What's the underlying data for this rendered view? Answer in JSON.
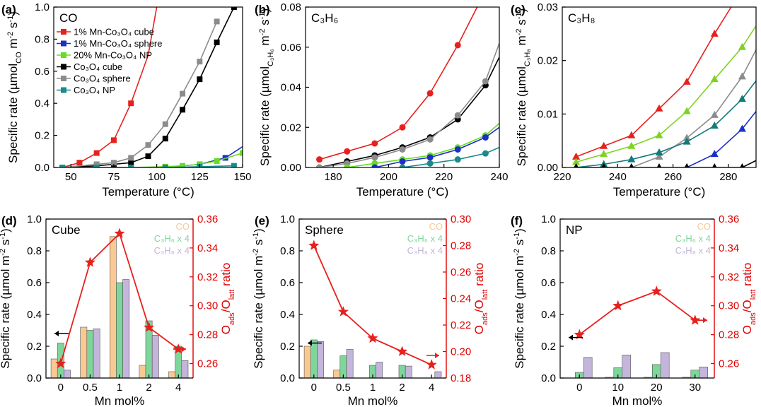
{
  "colors": {
    "red": "#e8201c",
    "blue": "#1c2fc8",
    "lightgreen": "#66dd22",
    "black": "#000000",
    "gray": "#8c8c8c",
    "teal": "#1a8a8a",
    "lime": "#7ed321",
    "darkteal": "#127a7a",
    "bar_co": "#f9c994",
    "bar_c3h6": "#7fd69b",
    "bar_c3h8": "#c4b5dd",
    "axis_red": "#e00000"
  },
  "chart_data": [
    {
      "panel": "(a)",
      "type": "line",
      "title": "CO",
      "xlabel": "Temperature (°C)",
      "ylabel": "Specific rate (µmol_CO m^-2 s^-1)",
      "ylabel_pre": "Specific rate (µmol",
      "ylabel_sub": "CO",
      "ylabel_post": " m",
      "ylabel_sup1": "-2",
      "ylabel_mid": " s",
      "ylabel_sup2": "-1",
      "ylabel_end": ")",
      "xlim": [
        40,
        150
      ],
      "ylim": [
        0,
        1.0
      ],
      "xticks": [
        50,
        75,
        100,
        125,
        150
      ],
      "yticks": [
        0.0,
        0.2,
        0.4,
        0.6,
        0.8,
        1.0
      ],
      "ytick_labels": [
        "0.0",
        "0.2",
        "0.4",
        "0.6",
        "0.8",
        "1.0"
      ],
      "series": [
        {
          "name": "1% Mn-Co₃O₄ cube",
          "color": "red",
          "marker": "square",
          "x": [
            45,
            55,
            65,
            75,
            85,
            95,
            100
          ],
          "y": [
            0.0,
            0.03,
            0.09,
            0.17,
            0.4,
            0.7,
            1.0
          ],
          "points": 5
        },
        {
          "name": "1% Mn-Co₃O₄ sphere",
          "color": "blue",
          "marker": "square",
          "x": [
            45,
            65,
            85,
            105,
            125,
            140,
            150
          ],
          "y": [
            0.0,
            0.0,
            0.0,
            0.0,
            0.02,
            0.06,
            0.13
          ],
          "points": 6
        },
        {
          "name": "20% Mn-Co₃O₄ NP",
          "color": "lightgreen",
          "marker": "square",
          "x": [
            45,
            65,
            85,
            105,
            115,
            125,
            135,
            150
          ],
          "y": [
            0.0,
            0.0,
            0.0,
            0.005,
            0.01,
            0.02,
            0.04,
            0.09
          ],
          "points": 8
        },
        {
          "name": "Co₃O₄ cube",
          "color": "black",
          "marker": "square",
          "x": [
            45,
            65,
            75,
            85,
            95,
            105,
            115,
            125,
            135,
            145
          ],
          "y": [
            0.0,
            0.01,
            0.02,
            0.03,
            0.07,
            0.18,
            0.36,
            0.55,
            0.78,
            1.0
          ],
          "points": 10
        },
        {
          "name": "Co₃O₄ sphere",
          "color": "gray",
          "marker": "square",
          "x": [
            45,
            65,
            75,
            85,
            95,
            105,
            115,
            125,
            135
          ],
          "y": [
            0.0,
            0.02,
            0.03,
            0.06,
            0.14,
            0.27,
            0.46,
            0.66,
            0.91
          ],
          "points": 9
        },
        {
          "name": "Co₃O₄ NP",
          "color": "teal",
          "marker": "square",
          "x": [
            45,
            65,
            85,
            105,
            125,
            145
          ],
          "y": [
            0.0,
            0.0,
            0.0,
            0.0,
            0.005,
            0.01
          ],
          "points": 6
        }
      ]
    },
    {
      "panel": "(b)",
      "type": "line",
      "title": "C₃H₆",
      "xlabel": "Temperature (°C)",
      "ylabel": "Specific rate (µmol_C3H6 m^-2 s^-1)",
      "ylabel_pre": "Specific rate (µmol",
      "ylabel_sub": "C₃H₆",
      "ylabel_post": " m",
      "ylabel_sup1": "-2",
      "ylabel_mid": " s",
      "ylabel_sup2": "-1",
      "ylabel_end": ")",
      "xlim": [
        170,
        240
      ],
      "ylim": [
        0,
        0.08
      ],
      "xticks": [
        180,
        200,
        220,
        240
      ],
      "yticks": [
        0.0,
        0.02,
        0.04,
        0.06,
        0.08
      ],
      "ytick_labels": [
        "0.00",
        "0.02",
        "0.04",
        "0.06",
        "0.08"
      ],
      "series": [
        {
          "name": "1% Mn-Co₃O₄ cube",
          "color": "red",
          "marker": "circle",
          "x": [
            175,
            185,
            195,
            205,
            215,
            225,
            232
          ],
          "y": [
            0.004,
            0.008,
            0.012,
            0.02,
            0.037,
            0.061,
            0.08
          ],
          "points": 6
        },
        {
          "name": "Co₃O₄ cube",
          "color": "black",
          "marker": "circle",
          "x": [
            175,
            185,
            195,
            205,
            215,
            225,
            235,
            240
          ],
          "y": [
            0.0,
            0.003,
            0.006,
            0.01,
            0.015,
            0.024,
            0.041,
            0.055
          ],
          "points": 7
        },
        {
          "name": "Co₃O₄ sphere",
          "color": "gray",
          "marker": "circle",
          "x": [
            175,
            185,
            195,
            205,
            215,
            225,
            235,
            240
          ],
          "y": [
            0.0,
            0.002,
            0.005,
            0.009,
            0.014,
            0.026,
            0.043,
            0.062
          ],
          "points": 7
        },
        {
          "name": "20% Mn-Co₃O₄ NP",
          "color": "lightgreen",
          "marker": "circle",
          "x": [
            185,
            195,
            205,
            215,
            225,
            235,
            240
          ],
          "y": [
            0.0,
            0.002,
            0.004,
            0.006,
            0.01,
            0.016,
            0.022
          ],
          "points": 6
        },
        {
          "name": "1% Mn-Co₃O₄ sphere",
          "color": "blue",
          "marker": "circle",
          "x": [
            195,
            205,
            215,
            225,
            235,
            240
          ],
          "y": [
            0.0,
            0.003,
            0.005,
            0.009,
            0.015,
            0.02
          ],
          "points": 5
        },
        {
          "name": "Co₃O₄ NP",
          "color": "teal",
          "marker": "circle",
          "x": [
            205,
            215,
            225,
            235,
            240
          ],
          "y": [
            0.0,
            0.002,
            0.004,
            0.007,
            0.01
          ],
          "points": 4
        }
      ]
    },
    {
      "panel": "(c)",
      "type": "line",
      "title": "C₃H₈",
      "xlabel": "Temperature (°C)",
      "ylabel": "Specific rate (µmol_C3H8 m^-2 s^-1)",
      "ylabel_pre": "Specific rate (µmol",
      "ylabel_sub": "C₃H₈",
      "ylabel_post": " m",
      "ylabel_sup1": "-2",
      "ylabel_mid": " s",
      "ylabel_sup2": "-1",
      "ylabel_end": ")",
      "xlim": [
        220,
        290
      ],
      "ylim": [
        0,
        0.03
      ],
      "xticks": [
        220,
        240,
        260,
        280
      ],
      "yticks": [
        0.0,
        0.01,
        0.02,
        0.03
      ],
      "ytick_labels": [
        "0.00",
        "0.01",
        "0.02",
        "0.03"
      ],
      "series": [
        {
          "name": "1% Mn-Co₃O₄ cube",
          "color": "red",
          "marker": "triangle",
          "x": [
            225,
            235,
            245,
            255,
            265,
            275,
            281
          ],
          "y": [
            0.002,
            0.004,
            0.006,
            0.011,
            0.016,
            0.025,
            0.03
          ],
          "points": 6
        },
        {
          "name": "20% Mn-Co₃O₄ NP",
          "color": "lime",
          "marker": "triangle",
          "x": [
            225,
            235,
            245,
            255,
            265,
            275,
            285,
            290
          ],
          "y": [
            0.001,
            0.0025,
            0.004,
            0.006,
            0.0105,
            0.0165,
            0.0225,
            0.0265
          ],
          "points": 7
        },
        {
          "name": "Co₃O₄ sphere",
          "color": "gray",
          "marker": "triangle",
          "x": [
            245,
            255,
            265,
            275,
            285,
            290
          ],
          "y": [
            0.0,
            0.002,
            0.0055,
            0.0098,
            0.017,
            0.022
          ],
          "points": 5
        },
        {
          "name": "Co₃O₄ NP",
          "color": "darkteal",
          "marker": "triangle",
          "x": [
            225,
            235,
            245,
            255,
            265,
            275,
            285,
            290
          ],
          "y": [
            0.0,
            0.0006,
            0.0015,
            0.0028,
            0.0048,
            0.0078,
            0.0128,
            0.0162
          ],
          "points": 7
        },
        {
          "name": "1% Mn-Co₃O₄ sphere",
          "color": "blue",
          "marker": "triangle",
          "x": [
            265,
            275,
            285,
            290
          ],
          "y": [
            0.0,
            0.0025,
            0.0072,
            0.0105
          ],
          "points": 3
        },
        {
          "name": "Co₃O₄ cube",
          "color": "black",
          "marker": "triangle",
          "x": [
            225,
            235,
            245,
            255,
            265,
            275,
            285,
            290
          ],
          "y": [
            0.0,
            0.0,
            0.0,
            0.0,
            0.0,
            0.0,
            0.0,
            0.0013
          ],
          "points": 7
        }
      ]
    },
    {
      "panel": "(d)",
      "type": "bar",
      "title": "Cube",
      "xlabel": "Mn mol%",
      "ylabel": "Specific rate (µmol m^-2 s^-1)",
      "y2label": "O_ads/O_latt ratio",
      "ylabel_pre": "Specific rate (µmol m",
      "ylabel_sup1": "-2",
      "ylabel_mid": " s",
      "ylabel_sup2": "-1",
      "ylabel_end": ")",
      "y2_pre": "O",
      "y2_sub1": "ads",
      "y2_mid": "/O",
      "y2_sub2": "latt",
      "y2_end": " ratio",
      "categories": [
        "0",
        "0.5",
        "1",
        "2",
        "4"
      ],
      "ylim": [
        0,
        1.0
      ],
      "yticks": [
        0.0,
        0.2,
        0.4,
        0.6,
        0.8,
        1.0
      ],
      "ytick_labels": [
        "0.0",
        "0.2",
        "0.4",
        "0.6",
        "0.8",
        "1.0"
      ],
      "y2lim": [
        0.25,
        0.36
      ],
      "y2ticks": [
        0.26,
        0.28,
        0.3,
        0.32,
        0.34,
        0.36
      ],
      "y2tick_labels": [
        "0.26",
        "0.28",
        "0.30",
        "0.32",
        "0.34",
        "0.36"
      ],
      "series": [
        {
          "name": "CO",
          "color": "bar_co",
          "values": [
            0.12,
            0.32,
            0.89,
            0.08,
            0.04
          ]
        },
        {
          "name": "C₃H₆ x 4",
          "color": "bar_c3h6",
          "values": [
            0.22,
            0.3,
            0.6,
            0.36,
            0.2
          ]
        },
        {
          "name": "C₃H₈ x 4",
          "color": "bar_c3h8",
          "values": [
            0.05,
            0.31,
            0.62,
            0.27,
            0.11
          ]
        }
      ],
      "ratio": {
        "name": "Oads/Olatt ratio",
        "color": "red",
        "values": [
          0.26,
          0.33,
          0.35,
          0.285,
          0.27
        ]
      },
      "legend": [
        "CO",
        "C₃H₆ x 4",
        "C₃H₈ x 4"
      ],
      "left_arrow_y": 0.28,
      "right_arrow_y": 0.27
    },
    {
      "panel": "(e)",
      "type": "bar",
      "title": "Sphere",
      "xlabel": "Mn mol%",
      "ylabel": "Specific rate (µmol m^-2 s^-1)",
      "y2label": "O_ads/O_latt ratio",
      "ylabel_pre": "Specific rate (µmol m",
      "ylabel_sup1": "-2",
      "ylabel_mid": " s",
      "ylabel_sup2": "-1",
      "ylabel_end": ")",
      "y2_pre": "O",
      "y2_sub1": "ads",
      "y2_mid": "/O",
      "y2_sub2": "latt",
      "y2_end": " ratio",
      "categories": [
        "0",
        "0.5",
        "1",
        "2",
        "4"
      ],
      "ylim": [
        0,
        1.0
      ],
      "yticks": [
        0.0,
        0.2,
        0.4,
        0.6,
        0.8,
        1.0
      ],
      "ytick_labels": [
        "0.0",
        "0.2",
        "0.4",
        "0.6",
        "0.8",
        "1.0"
      ],
      "y2lim": [
        0.18,
        0.3
      ],
      "y2ticks": [
        0.18,
        0.2,
        0.22,
        0.24,
        0.26,
        0.28,
        0.3
      ],
      "y2tick_labels": [
        "0.18",
        "0.20",
        "0.22",
        "0.24",
        "0.26",
        "0.28",
        "0.30"
      ],
      "series": [
        {
          "name": "CO",
          "color": "bar_co",
          "values": [
            0.2,
            0.05,
            0.0,
            0.0,
            0.0
          ]
        },
        {
          "name": "C₃H₆ x 4",
          "color": "bar_c3h6",
          "values": [
            0.24,
            0.14,
            0.08,
            0.08,
            0.0
          ]
        },
        {
          "name": "C₃H₈ x 4",
          "color": "bar_c3h8",
          "values": [
            0.23,
            0.18,
            0.1,
            0.075,
            0.04
          ]
        }
      ],
      "ratio": {
        "name": "Oads/Olatt ratio",
        "color": "red",
        "values": [
          0.28,
          0.23,
          0.21,
          0.2,
          0.19
        ]
      },
      "legend": [
        "CO",
        "C₃H₆ x 4",
        "C₃H₈ x 4"
      ],
      "left_arrow_y": 0.22,
      "right_arrow_y": 0.197
    },
    {
      "panel": "(f)",
      "type": "bar",
      "title": "NP",
      "xlabel": "Mn mol%",
      "ylabel": "Specific rate (µmol m^-2 s^-1)",
      "y2label": "O_ads/O_latt ratio",
      "ylabel_pre": "Specific rate (µmol m",
      "ylabel_sup1": "-2",
      "ylabel_mid": " s",
      "ylabel_sup2": "-1",
      "ylabel_end": ")",
      "y2_pre": "O",
      "y2_sub1": "ads",
      "y2_mid": "/O",
      "y2_sub2": "latt",
      "y2_end": " ratio",
      "categories": [
        "0",
        "10",
        "20",
        "30"
      ],
      "ylim": [
        0,
        1.0
      ],
      "yticks": [
        0.0,
        0.2,
        0.4,
        0.6,
        0.8,
        1.0
      ],
      "ytick_labels": [
        "0.0",
        "0.2",
        "0.4",
        "0.6",
        "0.8",
        "1.0"
      ],
      "y2lim": [
        0.25,
        0.36
      ],
      "y2ticks": [
        0.26,
        0.28,
        0.3,
        0.32,
        0.34,
        0.36
      ],
      "y2tick_labels": [
        "0.26",
        "0.28",
        "0.30",
        "0.32",
        "0.34",
        "0.36"
      ],
      "series": [
        {
          "name": "CO",
          "color": "bar_co",
          "values": [
            0.0,
            0.005,
            0.005,
            0.005
          ]
        },
        {
          "name": "C₃H₆ x 4",
          "color": "bar_c3h6",
          "values": [
            0.035,
            0.065,
            0.085,
            0.05
          ]
        },
        {
          "name": "C₃H₈ x 4",
          "color": "bar_c3h8",
          "values": [
            0.13,
            0.145,
            0.16,
            0.07
          ]
        }
      ],
      "ratio": {
        "name": "Oads/Olatt ratio",
        "color": "red",
        "values": [
          0.28,
          0.3,
          0.31,
          0.29
        ]
      },
      "legend": [
        "CO",
        "C₃H₆ x 4",
        "C₃H₈ x 4"
      ],
      "left_arrow_y": 0.255,
      "right_arrow_y": 0.29
    }
  ]
}
